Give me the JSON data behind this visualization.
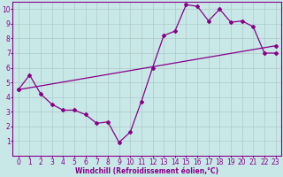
{
  "line1_x": [
    0,
    1,
    2,
    3,
    4,
    5,
    6,
    7,
    8,
    9,
    10,
    11,
    12,
    13,
    14,
    15,
    16,
    17,
    18,
    19,
    20,
    21,
    22,
    23
  ],
  "line1_y": [
    4.5,
    5.5,
    4.2,
    3.5,
    3.1,
    3.1,
    2.8,
    2.2,
    2.3,
    0.9,
    1.6,
    3.7,
    6.0,
    8.2,
    8.5,
    10.3,
    10.2,
    9.2,
    10.0,
    9.1,
    9.2,
    8.8,
    7.0,
    7.0
  ],
  "line2_x": [
    0,
    23
  ],
  "line2_y": [
    4.5,
    7.5
  ],
  "line_color": "#880088",
  "bg_color": "#c8e8e8",
  "grid_color": "#b0c8c8",
  "xlabel": "Windchill (Refroidissement éolien,°C)",
  "xlim": [
    -0.5,
    23.5
  ],
  "ylim": [
    0,
    10.5
  ],
  "xticks": [
    0,
    1,
    2,
    3,
    4,
    5,
    6,
    7,
    8,
    9,
    10,
    11,
    12,
    13,
    14,
    15,
    16,
    17,
    18,
    19,
    20,
    21,
    22,
    23
  ],
  "yticks": [
    1,
    2,
    3,
    4,
    5,
    6,
    7,
    8,
    9,
    10
  ],
  "marker": "D",
  "markersize": 2.0,
  "linewidth": 0.9,
  "xlabel_fontsize": 5.5,
  "tick_fontsize": 5.5
}
